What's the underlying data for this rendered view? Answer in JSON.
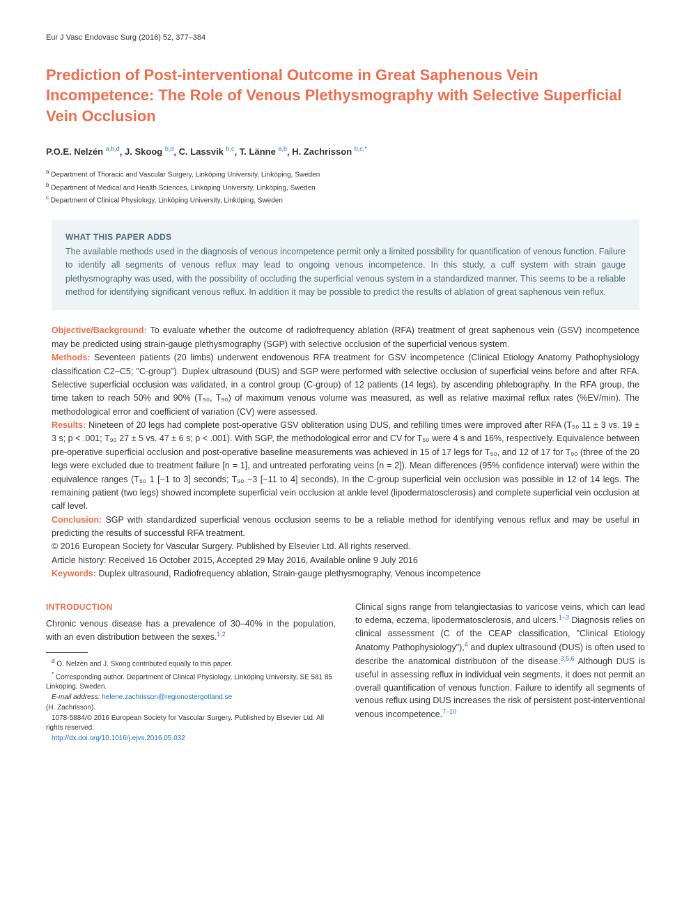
{
  "colors": {
    "accent": "#ee6e4e",
    "link": "#1b6ec2",
    "box_bg": "#eef4f6",
    "box_text": "#4a6b7a",
    "body_text": "#333333"
  },
  "journalHeader": "Eur J Vasc Endovasc Surg (2016) 52, 377–384",
  "title": "Prediction of Post-interventional Outcome in Great Saphenous Vein Incompetence: The Role of Venous Plethysmography with Selective Superficial Vein Occlusion",
  "authors": [
    {
      "name": "P.O.E. Nelzén",
      "sup": "a,b,d"
    },
    {
      "name": "J. Skoog",
      "sup": "b,d"
    },
    {
      "name": "C. Lassvik",
      "sup": "b,c"
    },
    {
      "name": "T. Länne",
      "sup": "a,b"
    },
    {
      "name": "H. Zachrisson",
      "sup": "b,c,*"
    }
  ],
  "affiliations": [
    {
      "sup": "a",
      "text": "Department of Thoracic and Vascular Surgery, Linköping University, Linköping, Sweden"
    },
    {
      "sup": "b",
      "text": "Department of Medical and Health Sciences, Linköping University, Linköping, Sweden"
    },
    {
      "sup": "c",
      "text": "Department of Clinical Physiology, Linköping University, Linköping, Sweden"
    }
  ],
  "box": {
    "heading": "WHAT THIS PAPER ADDS",
    "text": "The available methods used in the diagnosis of venous incompetence permit only a limited possibility for quantification of venous function. Failure to identify all segments of venous reflux may lead to ongoing venous incompetence. In this study, a cuff system with strain gauge plethysmography was used, with the possibility of occluding the superficial venous system in a standardized manner. This seems to be a reliable method for identifying significant venous reflux. In addition it may be possible to predict the results of ablation of great saphenous vein reflux."
  },
  "abstract": {
    "objective": {
      "label": "Objective/Background:",
      "text": " To evaluate whether the outcome of radiofrequency ablation (RFA) treatment of great saphenous vein (GSV) incompetence may be predicted using strain-gauge plethysmography (SGP) with selective occlusion of the superficial venous system."
    },
    "methods": {
      "label": "Methods:",
      "text": " Seventeen patients (20 limbs) underwent endovenous RFA treatment for GSV incompetence (Clinical Etiology Anatomy Pathophysiology classification C2–C5; \"C-group\"). Duplex ultrasound (DUS) and SGP were performed with selective occlusion of superficial veins before and after RFA. Selective superficial occlusion was validated, in a control group (C-group) of 12 patients (14 legs), by ascending phlebography. In the RFA group, the time taken to reach 50% and 90% (T₅₀, T₉₀) of maximum venous volume was measured, as well as relative maximal reflux rates (%EV/min). The methodological error and coefficient of variation (CV) were assessed."
    },
    "results": {
      "label": "Results:",
      "text": " Nineteen of 20 legs had complete post-operative GSV obliteration using DUS, and refilling times were improved after RFA (T₅₀ 11 ± 3 vs. 19 ± 3 s; p < .001; T₉₀ 27 ± 5 vs. 47 ± 6 s; p < .001). With SGP, the methodological error and CV for T₅₀ were 4 s and 16%, respectively. Equivalence between pre-operative superficial occlusion and post-operative baseline measurements was achieved in 15 of 17 legs for T₅₀, and 12 of 17 for T₉₀ (three of the 20 legs were excluded due to treatment failure [n = 1], and untreated perforating veins [n = 2]). Mean differences (95% confidence interval) were within the equivalence ranges (T₅₀ 1 [−1 to 3] seconds; T₉₀ −3 [−11 to 4] seconds). In the C-group superficial vein occlusion was possible in 12 of 14 legs. The remaining patient (two legs) showed incomplete superficial vein occlusion at ankle level (lipodermatosclerosis) and complete superficial vein occlusion at calf level."
    },
    "conclusion": {
      "label": "Conclusion:",
      "text": " SGP with standardized superficial venous occlusion seems to be a reliable method for identifying venous reflux and may be useful in predicting the results of successful RFA treatment."
    },
    "copyright": "© 2016 European Society for Vascular Surgery. Published by Elsevier Ltd. All rights reserved.",
    "history": "Article history: Received 16 October 2015, Accepted 29 May 2016, Available online 9 July 2016",
    "keywords": {
      "label": "Keywords:",
      "text": " Duplex ultrasound, Radiofrequency ablation, Strain-gauge plethysmography, Venous incompetence"
    }
  },
  "intro": {
    "heading": "INTRODUCTION",
    "col1_p1_pre": "Chronic venous disease has a prevalence of 30–40% in the population, with an even distribution between the sexes.",
    "col1_cite1": "1,2",
    "col2_p1_a": "Clinical signs range from telangiectasias to varicose veins, which can lead to edema, eczema, lipodermatosclerosis, and ulcers.",
    "col2_cite1": "1–3",
    "col2_p1_b": " Diagnosis relies on clinical assessment (C of the CEAP classification, \"Clinical Etiology Anatomy Pathophysiology\"),",
    "col2_cite2": "4",
    "col2_p1_c": " and duplex ultrasound (DUS) is often used to describe the anatomical distribution of the disease.",
    "col2_cite3": "3,5,6",
    "col2_p1_d": " Although DUS is useful in assessing reflux in individual vein segments, it does not permit an overall quantification of venous function. Failure to identify all segments of venous reflux using DUS increases the risk of persistent post-interventional venous incompetence.",
    "col2_cite4": "7–10"
  },
  "footnotes": {
    "d": "O. Nelzén and J. Skoog contributed equally to this paper.",
    "star": "Corresponding author. Department of Clinical Physiology, Linköping University, SE 581 85 Linköping, Sweden.",
    "email_label": "E-mail address:",
    "email": "helene.zachrisson@regionostergotland.se",
    "email_who": "(H. Zachrisson).",
    "issn": "1078-5884/© 2016 European Society for Vascular Surgery. Published by Elsevier Ltd. All rights reserved.",
    "doi": "http://dx.doi.org/10.1016/j.ejvs.2016.05.032"
  }
}
